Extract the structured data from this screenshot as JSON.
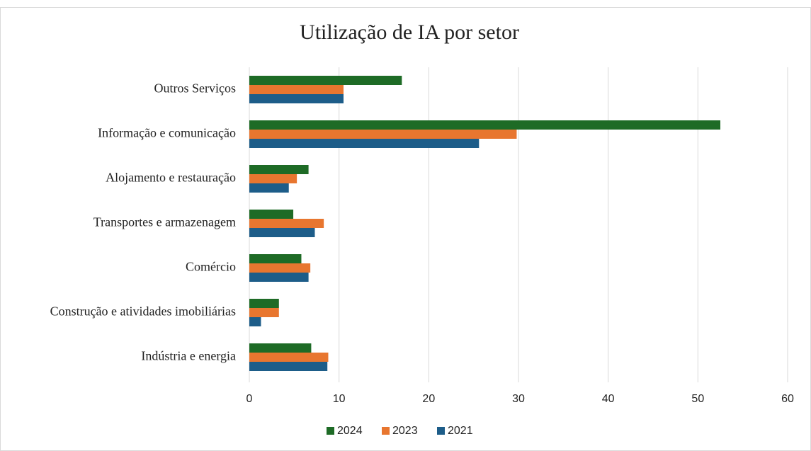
{
  "chart_data": {
    "type": "bar",
    "orientation": "horizontal",
    "title": "Utilização de IA por setor",
    "categories": [
      "Outros Serviços",
      "Informação e comunicação",
      "Alojamento e restauração",
      "Transportes  e armazenagem",
      "Comércio",
      "Construção e atividades imobiliárias",
      "Indústria e energia"
    ],
    "series": [
      {
        "name": "2024",
        "color": "#1e6b26",
        "values": [
          17.0,
          52.5,
          6.6,
          4.9,
          5.8,
          3.3,
          6.9
        ]
      },
      {
        "name": "2023",
        "color": "#e8762f",
        "values": [
          10.5,
          29.8,
          5.3,
          8.3,
          6.8,
          3.3,
          8.8
        ]
      },
      {
        "name": "2021",
        "color": "#1d5d89",
        "values": [
          10.5,
          25.6,
          4.4,
          7.3,
          6.6,
          1.3,
          8.7
        ]
      }
    ],
    "xlim": [
      0,
      60
    ],
    "xticks": [
      0,
      10,
      20,
      30,
      40,
      50,
      60
    ],
    "grid": true,
    "legend": "bottom"
  }
}
